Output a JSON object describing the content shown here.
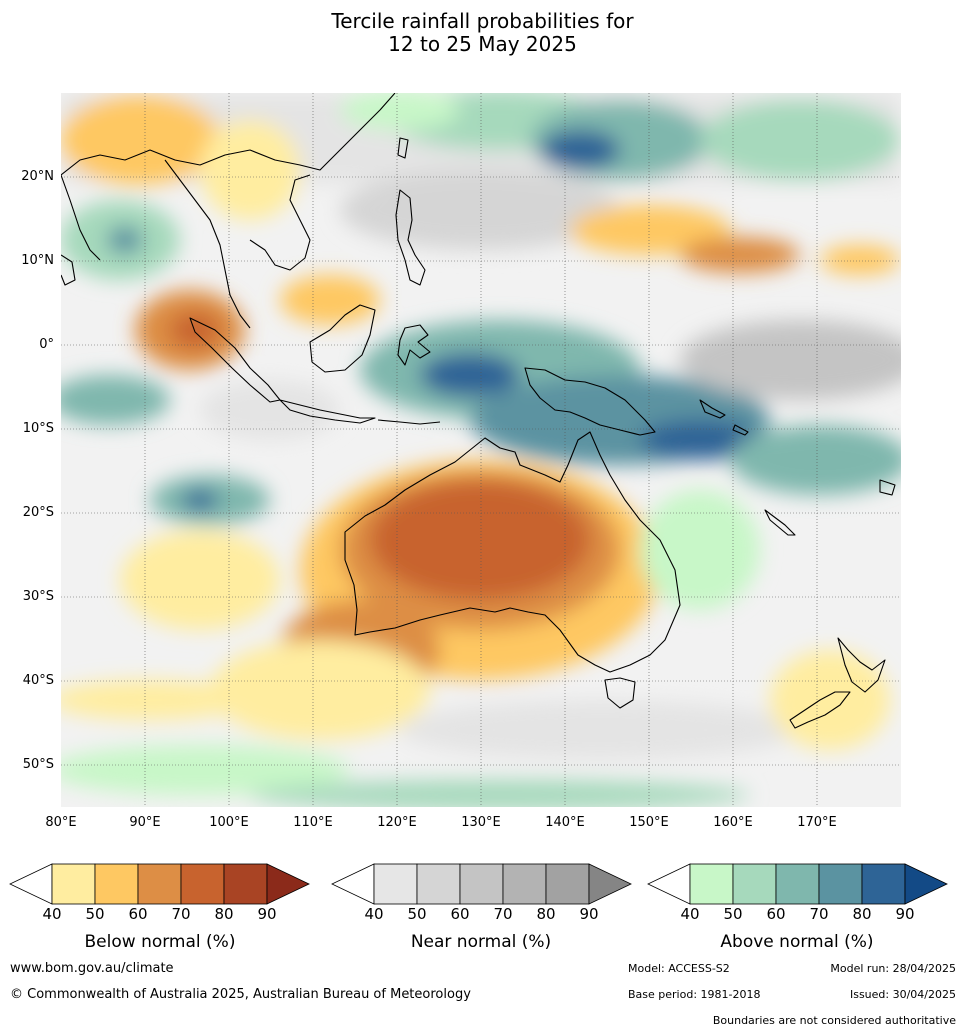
{
  "title": {
    "line1": "Tercile rainfall probabilities for",
    "line2": "12 to 25 May 2025"
  },
  "map": {
    "lat_labels": [
      "20°N",
      "10°N",
      "0°",
      "10°S",
      "20°S",
      "30°S",
      "40°S",
      "50°S"
    ],
    "lon_labels": [
      "80°E",
      "90°E",
      "100°E",
      "110°E",
      "120°E",
      "130°E",
      "140°E",
      "150°E",
      "160°E",
      "170°E"
    ],
    "extent": {
      "lon": [
        80,
        180
      ],
      "lat": [
        -55,
        30
      ]
    }
  },
  "colorbars": {
    "ticks": [
      "40",
      "50",
      "60",
      "70",
      "80",
      "90"
    ],
    "below": {
      "title": "Below normal (%)",
      "colors": [
        "#ffffff",
        "#ffeda0",
        "#fec862",
        "#dd8e45",
        "#c8632e",
        "#a94424",
        "#8b2a1a"
      ]
    },
    "near": {
      "title": "Near normal (%)",
      "colors": [
        "#ffffff",
        "#e6e6e6",
        "#d5d5d5",
        "#c4c4c4",
        "#b3b3b3",
        "#a2a2a2",
        "#858585"
      ]
    },
    "above": {
      "title": "Above normal (%)",
      "colors": [
        "#ffffff",
        "#c8f7c8",
        "#a6d9bc",
        "#7fb7ad",
        "#5b93a1",
        "#2e6496",
        "#134a86"
      ]
    }
  },
  "footer": {
    "url": "www.bom.gov.au/climate",
    "copyright": "© Commonwealth of Australia 2025, Australian Bureau of Meteorology",
    "model": "Model: ACCESS-S2",
    "model_run": "Model run: 28/04/2025",
    "base_period": "Base period: 1981-2018",
    "issued": "Issued: 30/04/2025",
    "disclaimer": "Boundaries are not considered authoritative"
  }
}
